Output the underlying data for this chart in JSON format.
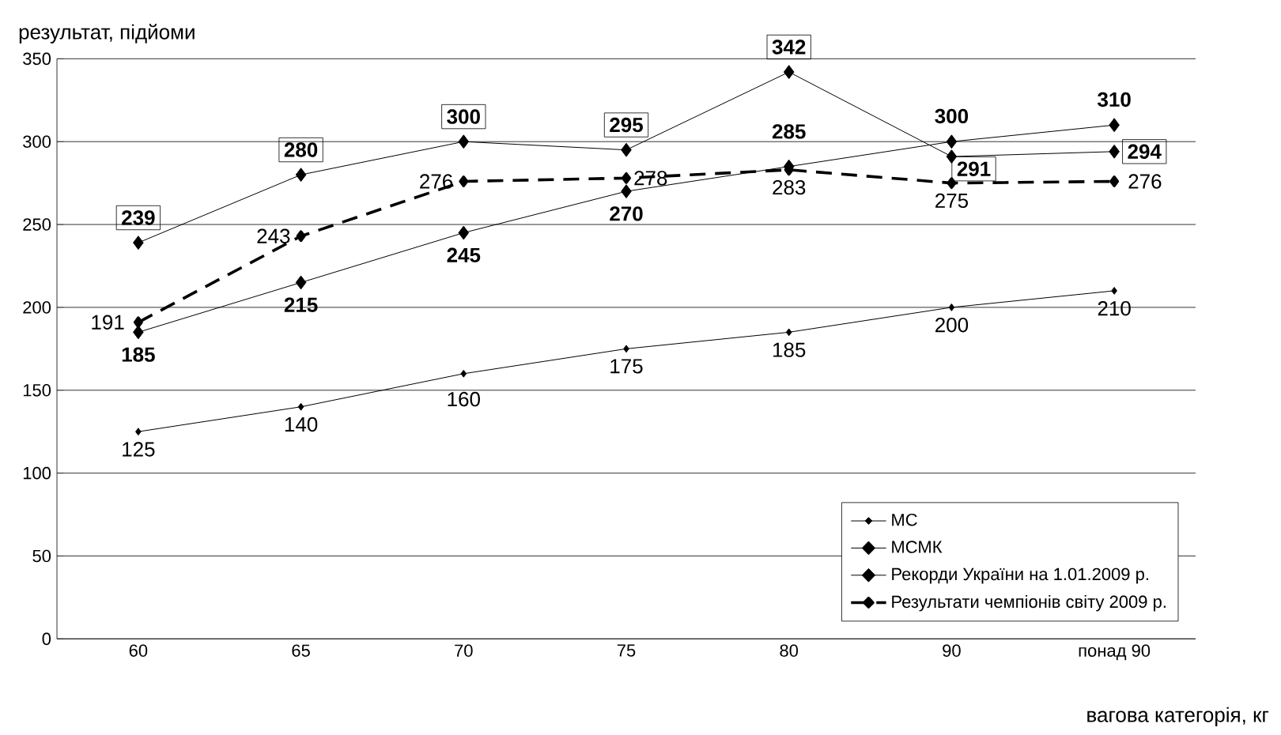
{
  "chart_data": {
    "type": "line",
    "xlabel": "вагова категорія, кг",
    "ylabel": "результат, підйоми",
    "categories": [
      "60",
      "65",
      "70",
      "75",
      "80",
      "90",
      "понад 90"
    ],
    "series": [
      {
        "name": "МС",
        "color": "#000000",
        "values": [
          125,
          140,
          160,
          175,
          185,
          200,
          210
        ]
      },
      {
        "name": "МСМК",
        "color": "#000000",
        "values": [
          185,
          215,
          245,
          270,
          285,
          300,
          310
        ]
      },
      {
        "name": "Рекорди України на 1.01.2009 р.",
        "color": "#000000",
        "values": [
          239,
          280,
          300,
          295,
          342,
          291,
          294
        ]
      },
      {
        "name": "Результати чемпіонів світу 2009 р.",
        "color": "#000000",
        "line_style": "dashed",
        "values": [
          191,
          243,
          276,
          278,
          283,
          275,
          276
        ]
      }
    ],
    "ylim": [
      0,
      350
    ],
    "yticks": [
      0,
      50,
      100,
      150,
      200,
      250,
      300,
      350
    ],
    "grid": "y",
    "legend": "bottom right",
    "marker": "diamond",
    "line_style": "solid",
    "data_labels": true
  }
}
